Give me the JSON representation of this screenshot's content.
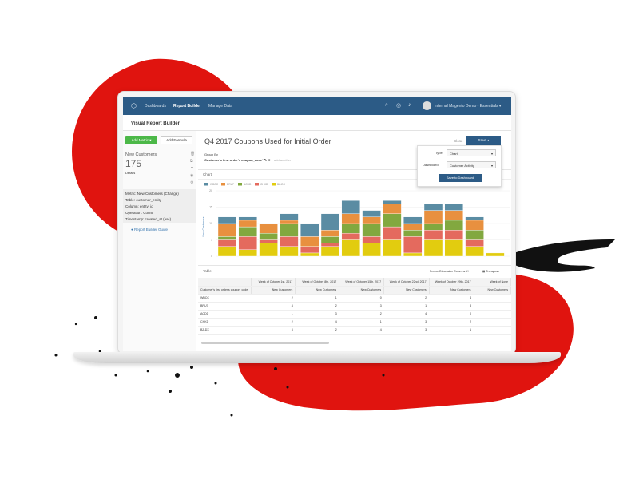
{
  "nav": {
    "items": [
      "Dashboards",
      "Report Builder",
      "Manage Data"
    ],
    "account": "Internal Magento Demo - Essentials ▾",
    "icons": [
      "search-icon",
      "help-icon",
      "bell-icon"
    ],
    "color": "#2c5b86"
  },
  "subheader": {
    "title": "Visual Report Builder"
  },
  "left": {
    "add_metric": "Add Metric ▾",
    "add_formula": "Add Formula",
    "metric_name": "New Customers",
    "metric_value": "175",
    "details": "Details",
    "info": [
      "Metric: New Customers (Change)",
      "Table: customer_entity",
      "Column: entity_id",
      "Operation: Count",
      "Timestamp: created_at (asc)"
    ],
    "guide": "Report Builder Guide"
  },
  "main": {
    "title": "Q4 2017 Coupons Used for Initial Order",
    "close": "Close",
    "save": "Save ▴",
    "group_by_label": "Group By",
    "group_by_value": "Customer's first order's coupon_code* ✎ ✕",
    "add_another": "add another",
    "save_popup": {
      "type_label": "Type:",
      "type_value": "Chart",
      "dashboard_label": "Dashboard:",
      "dashboard_value": "Customer Activity",
      "button": "Save to Dashboard"
    },
    "chart_label": "Chart",
    "table_label": "Table",
    "freeze": "Freeze Dimension Columns ☑",
    "transpose": "Transpose"
  },
  "chart_data": {
    "type": "bar",
    "stacked": true,
    "ylabel": "New Customers",
    "ylim": [
      0,
      20
    ],
    "yticks": [
      "0",
      "5",
      "10",
      "15",
      "20"
    ],
    "xticks": [
      "Oct 1st, 2017",
      "Oct 22nd, 2017",
      "Nov 12th, 2017",
      "Dec 3rd, 2017",
      "Dec 24th, 2017"
    ],
    "series": [
      {
        "name": "BZ-DX",
        "color": "#e2cc0f",
        "values": [
          3,
          2,
          4,
          3,
          1,
          3,
          5,
          4,
          5,
          1,
          5,
          5,
          3,
          1
        ]
      },
      {
        "name": "CHKD",
        "color": "#e46a5e",
        "values": [
          2,
          4,
          1,
          3,
          2,
          1,
          2,
          2,
          4,
          5,
          3,
          3,
          2,
          0
        ]
      },
      {
        "name": "ACDD",
        "color": "#82a83f",
        "values": [
          1,
          3,
          2,
          4,
          0,
          2,
          3,
          4,
          4,
          2,
          2,
          3,
          3,
          0
        ]
      },
      {
        "name": "BRU7",
        "color": "#e8903f",
        "values": [
          4,
          2,
          3,
          1,
          3,
          2,
          3,
          2,
          3,
          2,
          4,
          3,
          3,
          0
        ]
      },
      {
        "name": "WBCC",
        "color": "#5a8ca3",
        "values": [
          2,
          1,
          0,
          2,
          4,
          5,
          4,
          2,
          1,
          2,
          2,
          2,
          1,
          0
        ]
      }
    ],
    "legend": [
      "WBCC",
      "BRU7",
      "ACDD",
      "CHKD",
      "BZ-DX"
    ],
    "grid": true
  },
  "table": {
    "dim_header": "Customer's first order's coupon_code",
    "weeks": [
      "Week of October 1st, 2017",
      "Week of October 8th, 2017",
      "Week of October 15th, 2017",
      "Week of October 22nd, 2017",
      "Week of October 29th, 2017",
      "Week of Nove"
    ],
    "measure": "New Customers",
    "rows": [
      {
        "code": "WBCC",
        "values": [
          "2",
          "1",
          "0",
          "2",
          "4",
          ""
        ]
      },
      {
        "code": "BRU7",
        "values": [
          "4",
          "2",
          "3",
          "1",
          "3",
          ""
        ]
      },
      {
        "code": "ACDD",
        "values": [
          "1",
          "3",
          "2",
          "4",
          "0",
          ""
        ]
      },
      {
        "code": "CHKD",
        "values": [
          "2",
          "4",
          "1",
          "3",
          "2",
          ""
        ]
      },
      {
        "code": "BZ-DX",
        "values": [
          "3",
          "2",
          "4",
          "3",
          "1",
          ""
        ]
      }
    ]
  }
}
